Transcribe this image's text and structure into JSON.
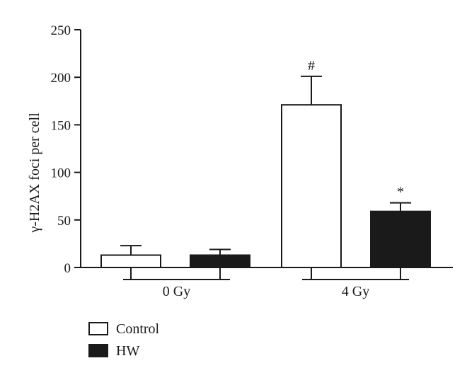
{
  "chart_data": {
    "type": "bar",
    "ylabel": "γ-H2AX foci per cell",
    "ylim": [
      0,
      250
    ],
    "yticks": [
      0,
      50,
      100,
      150,
      200,
      250
    ],
    "categories": [
      "0 Gy",
      "4 Gy"
    ],
    "series": [
      {
        "name": "Control",
        "color": "#ffffff",
        "values": [
          13,
          171
        ],
        "errors": [
          10,
          30
        ],
        "annotations": [
          "",
          "#"
        ]
      },
      {
        "name": "HW",
        "color": "#1a1a1a",
        "values": [
          13,
          59
        ],
        "errors": [
          6,
          9
        ],
        "annotations": [
          "",
          "*"
        ]
      }
    ],
    "legend": "bottom-left",
    "grid": false
  }
}
